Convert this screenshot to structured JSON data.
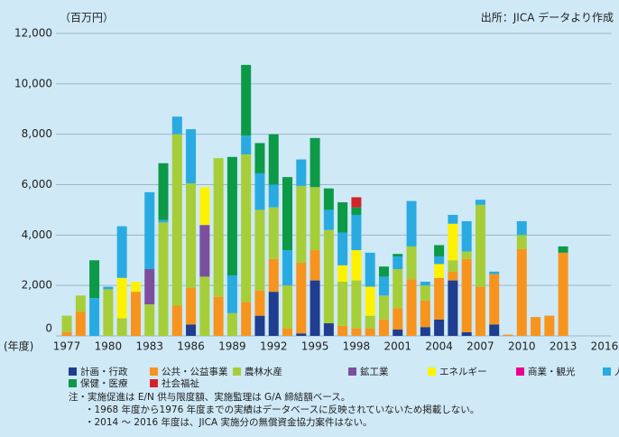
{
  "chart_data": {
    "type": "stacked_bar",
    "unit_label": "（百万円）",
    "source": "出所：JICA データより作成",
    "x_label": "(年度)",
    "categories": [
      "1977",
      null,
      null,
      "1980",
      null,
      null,
      "1983",
      null,
      null,
      "1986",
      null,
      null,
      "1989",
      null,
      null,
      "1992",
      null,
      null,
      "1995",
      null,
      null,
      "1998",
      null,
      null,
      "2001",
      null,
      null,
      "2004",
      null,
      null,
      "2007",
      null,
      null,
      "2010",
      null,
      null,
      "2013",
      null,
      null,
      "2016"
    ],
    "ylim": [
      0,
      12000
    ],
    "yticks": [
      0,
      {
        "value": 2000,
        "label": "2,000"
      },
      {
        "value": 4000,
        "label": "4,000"
      },
      {
        "value": 6000,
        "label": "6,000"
      },
      {
        "value": 8000,
        "label": "8,000"
      },
      {
        "value": 10000,
        "label": "10,000"
      },
      {
        "value": 12000,
        "label": "12,000"
      }
    ],
    "grid": true,
    "series": [
      {
        "name": "計画・行政",
        "color": "#1f3e8f",
        "values": [
          0,
          0,
          0,
          0,
          0,
          0,
          0,
          0,
          0,
          450,
          0,
          0,
          0,
          0,
          800,
          1750,
          0,
          100,
          2200,
          500,
          0,
          0,
          0,
          0,
          250,
          0,
          350,
          650,
          2200,
          150,
          0,
          450,
          0,
          0,
          0,
          0,
          0,
          0,
          0,
          0
        ]
      },
      {
        "name": "公共・公益事業",
        "color": "#f7941d",
        "values": [
          150,
          950,
          0,
          0,
          0,
          1750,
          0,
          0,
          1200,
          1450,
          0,
          1550,
          0,
          1350,
          1000,
          1300,
          300,
          2800,
          1200,
          0,
          400,
          300,
          300,
          650,
          850,
          2250,
          1050,
          1650,
          350,
          2900,
          1950,
          2000,
          50,
          3450,
          750,
          800,
          3300,
          0,
          0,
          0
        ]
      },
      {
        "name": "農林水産",
        "color": "#a6ce39",
        "values": [
          650,
          650,
          0,
          1850,
          700,
          0,
          1250,
          4500,
          6800,
          4150,
          2350,
          5500,
          900,
          5850,
          3200,
          2050,
          1700,
          3050,
          2500,
          3700,
          1750,
          1900,
          500,
          950,
          1550,
          1300,
          600,
          0,
          450,
          300,
          3250,
          0,
          0,
          550,
          0,
          0,
          0,
          0,
          0,
          0
        ]
      },
      {
        "name": "鉱工業",
        "color": "#7b4f9e",
        "values": [
          0,
          0,
          0,
          0,
          0,
          0,
          1400,
          0,
          0,
          0,
          2050,
          0,
          0,
          0,
          0,
          0,
          0,
          0,
          0,
          0,
          0,
          0,
          0,
          0,
          0,
          0,
          0,
          0,
          0,
          0,
          0,
          0,
          0,
          0,
          0,
          0,
          0,
          0,
          0,
          0
        ]
      },
      {
        "name": "エネルギー",
        "color": "#fff200",
        "values": [
          0,
          0,
          0,
          0,
          1600,
          400,
          0,
          0,
          0,
          0,
          1500,
          0,
          0,
          0,
          0,
          0,
          0,
          0,
          0,
          0,
          650,
          1200,
          1150,
          0,
          0,
          0,
          0,
          550,
          1450,
          0,
          0,
          0,
          0,
          0,
          0,
          0,
          0,
          0,
          0,
          0
        ]
      },
      {
        "name": "商業・観光",
        "color": "#ec008c",
        "values": [
          0,
          0,
          0,
          0,
          0,
          0,
          0,
          0,
          0,
          0,
          0,
          0,
          0,
          0,
          0,
          0,
          0,
          0,
          0,
          0,
          0,
          0,
          0,
          0,
          0,
          0,
          0,
          0,
          0,
          0,
          0,
          0,
          0,
          0,
          0,
          0,
          0,
          0,
          0,
          0
        ]
      },
      {
        "name": "人的資源",
        "color": "#29abe2",
        "values": [
          0,
          0,
          1500,
          100,
          2050,
          0,
          3050,
          100,
          700,
          2150,
          0,
          0,
          1500,
          750,
          1450,
          900,
          1400,
          1050,
          0,
          800,
          1300,
          1400,
          1350,
          750,
          500,
          1800,
          150,
          300,
          350,
          1200,
          200,
          100,
          0,
          550,
          0,
          0,
          0,
          0,
          0,
          0
        ]
      },
      {
        "name": "保健・医療",
        "color": "#0c9a47",
        "values": [
          0,
          0,
          1500,
          0,
          0,
          0,
          0,
          2250,
          0,
          0,
          0,
          0,
          4700,
          2800,
          1200,
          2000,
          2900,
          0,
          1950,
          850,
          1200,
          300,
          0,
          400,
          100,
          0,
          0,
          450,
          0,
          0,
          0,
          0,
          0,
          0,
          0,
          0,
          250,
          0,
          0,
          0
        ]
      },
      {
        "name": "社会福祉",
        "color": "#d2232a",
        "values": [
          0,
          0,
          0,
          0,
          0,
          0,
          0,
          0,
          0,
          0,
          0,
          0,
          0,
          0,
          0,
          0,
          0,
          0,
          0,
          0,
          0,
          400,
          0,
          0,
          0,
          0,
          0,
          0,
          0,
          0,
          0,
          0,
          0,
          0,
          0,
          0,
          0,
          0,
          0,
          0
        ]
      }
    ],
    "notes": [
      "注・実施促進は E/N 供与限度額、実施監理は G/A 締結額ベース。",
      "・1968 年度から1976 年度までの実績はデータベースに反映されていないため掲載しない。",
      "・2014 ～ 2016 年度は、JICA 実施分の無償資金協力案件はない。"
    ]
  }
}
